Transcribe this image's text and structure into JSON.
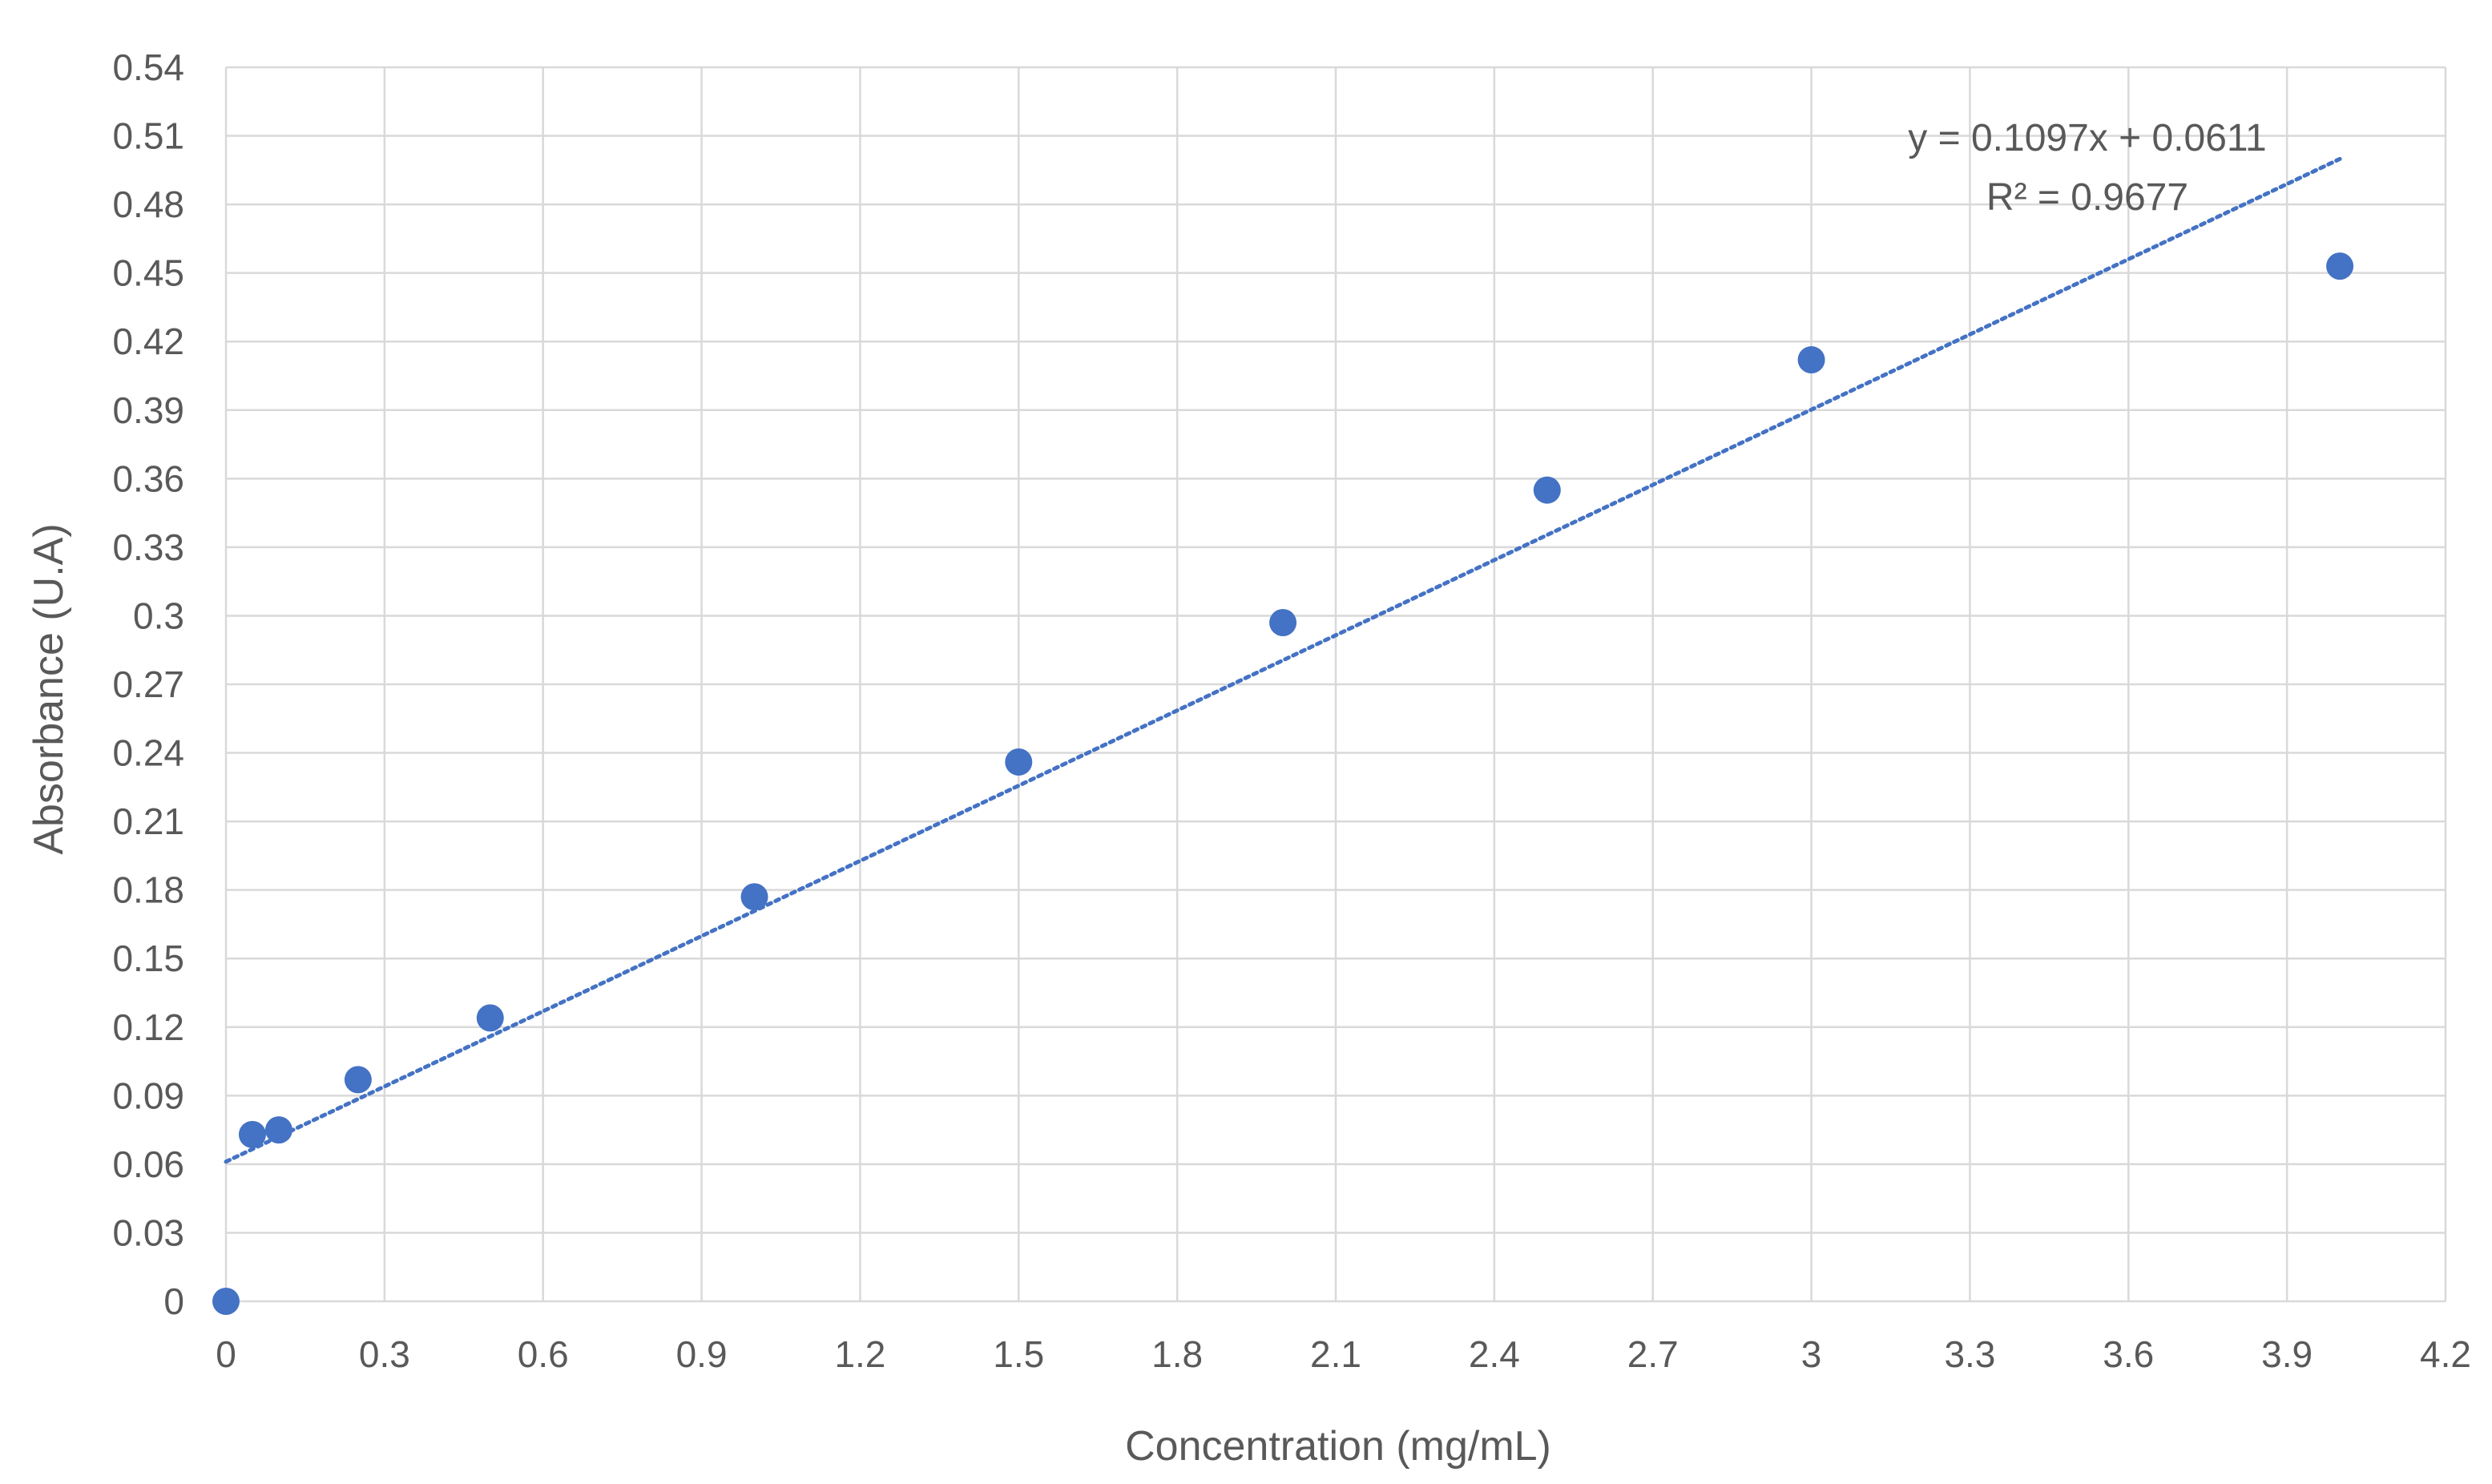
{
  "chart_data": {
    "type": "scatter",
    "title": "",
    "xlabel": "Concentration (mg/mL)",
    "ylabel": "Absorbance (U.A)",
    "xlim": [
      0,
      4.2
    ],
    "ylim": [
      0,
      0.54
    ],
    "x_ticks": [
      "0",
      "0.3",
      "0.6",
      "0.9",
      "1.2",
      "1.5",
      "1.8",
      "2.1",
      "2.4",
      "2.7",
      "3",
      "3.3",
      "3.6",
      "3.9",
      "4.2"
    ],
    "y_ticks": [
      "0",
      "0.03",
      "0.06",
      "0.09",
      "0.12",
      "0.15",
      "0.18",
      "0.21",
      "0.24",
      "0.27",
      "0.3",
      "0.33",
      "0.36",
      "0.39",
      "0.42",
      "0.45",
      "0.48",
      "0.51",
      "0.54"
    ],
    "grid": true,
    "legend": "none",
    "series": [
      {
        "color": "#4472C4",
        "marker": "circle",
        "points": [
          {
            "x": 0,
            "y": 0.0
          },
          {
            "x": 0.05,
            "y": 0.073
          },
          {
            "x": 0.1,
            "y": 0.075
          },
          {
            "x": 0.25,
            "y": 0.097
          },
          {
            "x": 0.5,
            "y": 0.124
          },
          {
            "x": 1.0,
            "y": 0.177
          },
          {
            "x": 1.5,
            "y": 0.236
          },
          {
            "x": 2.0,
            "y": 0.297
          },
          {
            "x": 2.5,
            "y": 0.355
          },
          {
            "x": 3.0,
            "y": 0.412
          },
          {
            "x": 4.0,
            "y": 0.453
          }
        ]
      }
    ],
    "trendline": {
      "type": "linear",
      "slope": 0.1097,
      "intercept": 0.0611,
      "x_range": [
        0,
        4.0
      ],
      "style": "dotted",
      "color": "#4472C4",
      "equation_label": "y = 0.1097x + 0.0611",
      "r2_label": "R² = 0.9677"
    },
    "colors": {
      "grid": "#d9d9d9",
      "text": "#595959"
    }
  }
}
